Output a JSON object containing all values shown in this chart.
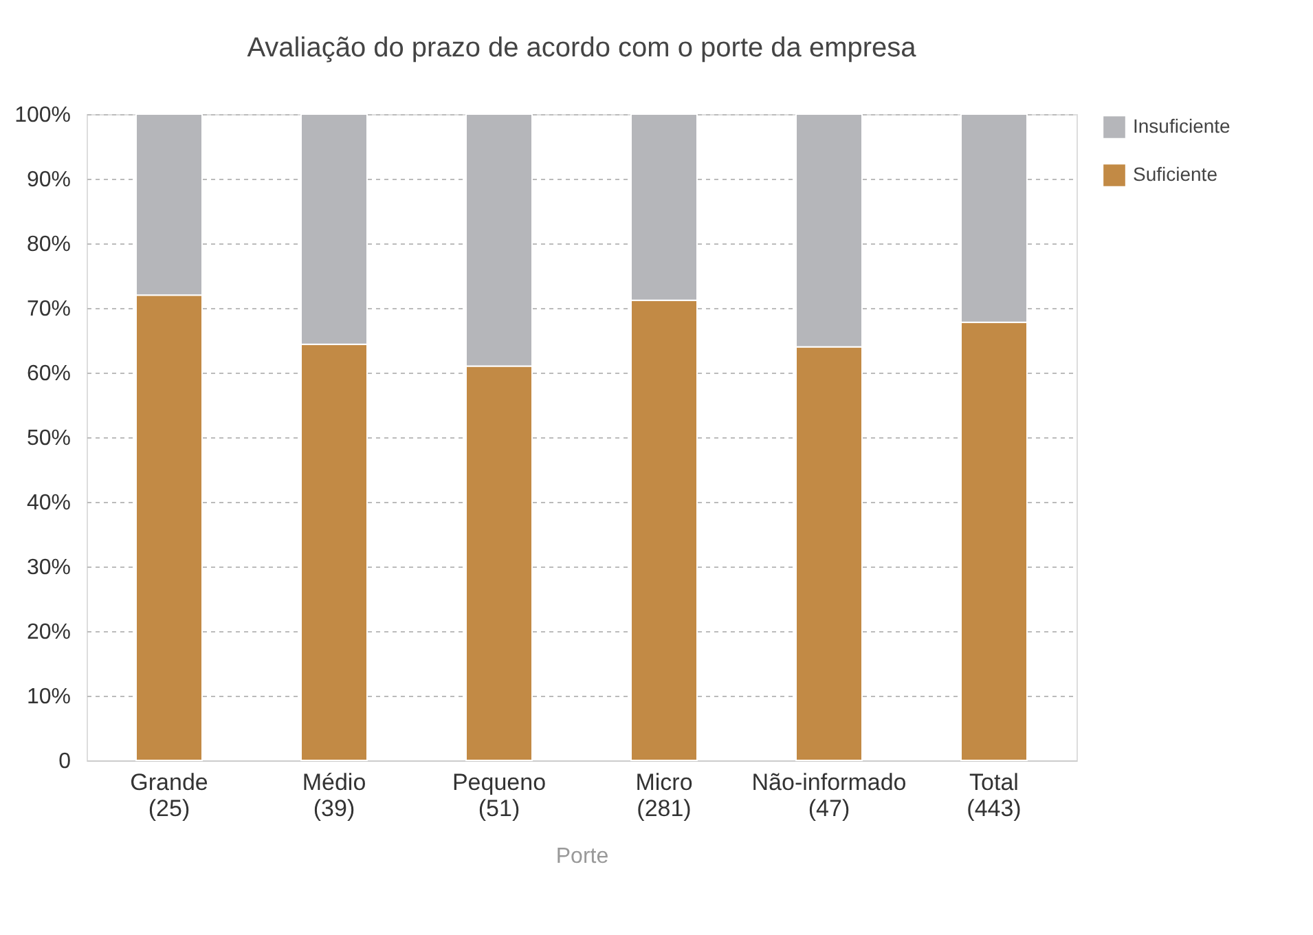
{
  "chart_data": {
    "type": "bar",
    "stacked": true,
    "title": "Avaliação do prazo de acordo com o porte da empresa",
    "xlabel": "Porte",
    "categories": [
      "Grande\n(25)",
      "Médio\n(39)",
      "Pequeno\n(51)",
      "Micro\n(281)",
      "Não-informado\n(47)",
      "Total\n(443)"
    ],
    "series": [
      {
        "name": "Suficiente",
        "color": "#c28a45",
        "values": [
          72,
          64.4,
          61,
          71.2,
          64,
          67.8
        ]
      },
      {
        "name": "Insuficiente",
        "color": "#b5b6ba",
        "values": [
          28,
          35.6,
          39,
          28.8,
          36,
          32.2
        ]
      }
    ],
    "ylim": [
      0,
      100
    ],
    "yticks": [
      0,
      {
        "value": 10,
        "label": "10%"
      },
      {
        "value": 20,
        "label": "20%"
      },
      {
        "value": 30,
        "label": "30%"
      },
      {
        "value": 40,
        "label": "40%"
      },
      {
        "value": 50,
        "label": "50%"
      },
      {
        "value": 60,
        "label": "60%"
      },
      {
        "value": 70,
        "label": "70%"
      },
      {
        "value": 80,
        "label": "80%"
      },
      {
        "value": 90,
        "label": "90%"
      },
      {
        "value": 100,
        "label": "100%"
      }
    ],
    "grid": "y",
    "legend": "top right"
  }
}
